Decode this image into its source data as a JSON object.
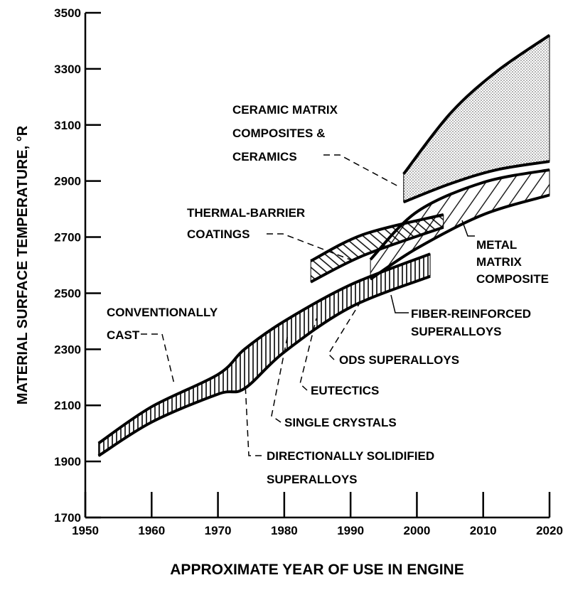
{
  "chart_data": {
    "type": "band",
    "xlabel": "APPROXIMATE YEAR OF USE IN ENGINE",
    "ylabel": "MATERIAL SURFACE TEMPERATURE, °R",
    "xlim": [
      1950,
      2020
    ],
    "ylim": [
      1700,
      3500
    ],
    "xticks": [
      1950,
      1960,
      1970,
      1980,
      1990,
      2000,
      2010,
      2020
    ],
    "yticks": [
      1700,
      1900,
      2100,
      2300,
      2500,
      2700,
      2900,
      3100,
      3300,
      3500
    ],
    "series": [
      {
        "hatch": "vertical",
        "x": [
          1952,
          1960,
          1970,
          1974,
          1980,
          1990,
          2002
        ],
        "upper": [
          1965,
          2095,
          2210,
          2300,
          2400,
          2530,
          2640
        ],
        "lower": [
          1920,
          2040,
          2140,
          2160,
          2290,
          2450,
          2560
        ]
      },
      {
        "hatch": "diagonal-reverse",
        "x": [
          1984,
          1992,
          2004
        ],
        "upper": [
          2615,
          2710,
          2780
        ],
        "lower": [
          2540,
          2635,
          2735
        ]
      },
      {
        "hatch": "diagonal",
        "x": [
          1993,
          2000,
          2010,
          2020
        ],
        "upper": [
          2620,
          2790,
          2895,
          2940
        ],
        "lower": [
          2550,
          2660,
          2780,
          2850
        ]
      },
      {
        "hatch": "dots",
        "x": [
          1998,
          2005,
          2012,
          2020
        ],
        "upper": [
          2925,
          3140,
          3290,
          3420
        ],
        "lower": [
          2825,
          2890,
          2940,
          2970
        ]
      }
    ],
    "annotations": [
      [
        "CERAMIC MATRIX",
        "COMPOSITES &",
        "CERAMICS"
      ],
      [
        "THERMAL-BARRIER",
        "COATINGS"
      ],
      [
        "METAL",
        "MATRIX",
        "COMPOSITE"
      ],
      [
        "FIBER-REINFORCED",
        "SUPERALLOYS"
      ],
      [
        "ODS SUPERALLOYS"
      ],
      [
        "EUTECTICS"
      ],
      [
        "SINGLE CRYSTALS"
      ],
      [
        "DIRECTIONALLY SOLIDIFIED",
        "SUPERALLOYS"
      ],
      [
        "CONVENTIONALLY",
        "CAST"
      ]
    ]
  }
}
